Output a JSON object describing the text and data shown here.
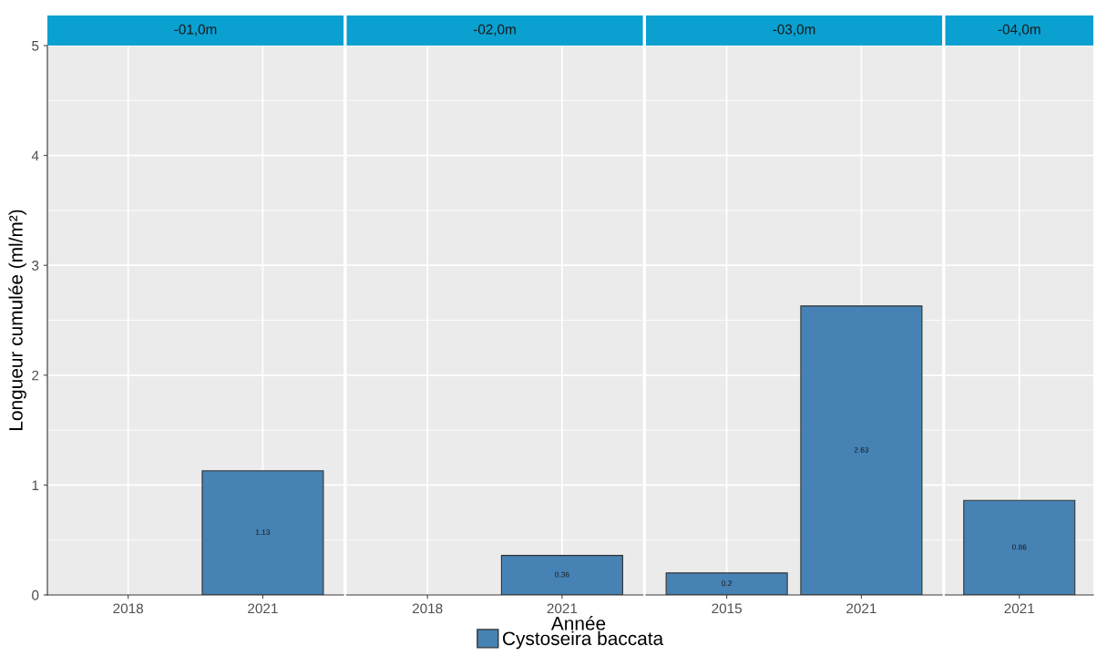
{
  "chart_data": [
    {
      "type": "bar",
      "title": "-01,0m",
      "ylabel": "Longueur cumulée (ml/m²)",
      "categories": [
        "2018",
        "2021"
      ],
      "series": [
        {
          "name": "Cystoseira baccata",
          "color": "#4682b4",
          "values": [
            null,
            1.13
          ]
        }
      ],
      "ylim": [
        0,
        5
      ],
      "yticks": [
        0,
        1,
        2,
        3,
        4,
        5
      ],
      "grid": true,
      "data_labels": true,
      "legend": "bottom"
    },
    {
      "type": "bar",
      "title": "-02,0m",
      "xlabel": "Année",
      "categories": [
        "2018",
        "2021"
      ],
      "series": [
        {
          "color": "#4682b4",
          "values": [
            null,
            0.36
          ]
        }
      ],
      "ylim": [
        0,
        5
      ],
      "yticks": [
        0,
        1,
        2,
        3,
        4,
        5
      ],
      "grid": true,
      "data_labels": true,
      "tick_labels": "x"
    },
    {
      "type": "bar",
      "title": "-03,0m",
      "categories": [
        "2015",
        "2021"
      ],
      "series": [
        {
          "color": "#4682b4",
          "values": [
            0.2,
            2.63
          ]
        }
      ],
      "ylim": [
        0,
        5
      ],
      "yticks": [
        0,
        1,
        2,
        3,
        4,
        5
      ],
      "grid": true,
      "data_labels": true,
      "tick_labels": "x"
    },
    {
      "type": "bar",
      "title": "-04,0m",
      "categories": [
        "2021"
      ],
      "series": [
        {
          "color": "#4682b4",
          "values": [
            0.86
          ]
        }
      ],
      "ylim": [
        0,
        5
      ],
      "yticks": [
        0,
        1,
        2,
        3,
        4,
        5
      ],
      "grid": true,
      "data_labels": true,
      "tick_labels": "x"
    }
  ]
}
